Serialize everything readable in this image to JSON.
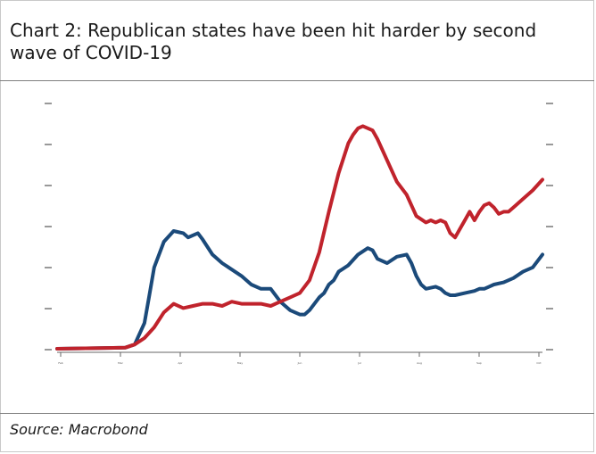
{
  "header": {
    "title": "Chart 2:  Republican states have been hit harder by second wave of COVID-19"
  },
  "footer": {
    "source": "Source: Macrobond"
  },
  "chart_data": {
    "type": "line",
    "title": "Chart 2:  Republican states have been hit harder by second wave of COVID-19",
    "xlabel": "",
    "ylabel": "",
    "x_tick_labels": [
      "Feb",
      "Mar",
      "Apr",
      "May",
      "Jun",
      "Jul",
      "Aug",
      "Sep",
      "Oct"
    ],
    "xlim": [
      0,
      100
    ],
    "ylim": [
      0,
      100
    ],
    "grid": false,
    "legend_position": "on-chart labels",
    "colors": {
      "blue_series": "#1b4a7a",
      "red_series": "#c0232c"
    },
    "series": [
      {
        "color": "#1b4a7a",
        "x": [
          0,
          14,
          16,
          18,
          19,
          20,
          22,
          24,
          26,
          27,
          28,
          29,
          30,
          32,
          34,
          36,
          38,
          40,
          42,
          44,
          46,
          48,
          50,
          51,
          52,
          54,
          55,
          56,
          57,
          58,
          60,
          62,
          64,
          65,
          66,
          68,
          70,
          72,
          73,
          74,
          75,
          76,
          78,
          79,
          80,
          81,
          82,
          84,
          86,
          87,
          88,
          89,
          90,
          92,
          94,
          96,
          98,
          100
        ],
        "y": [
          0,
          0.5,
          2,
          12,
          25,
          38,
          50,
          55,
          54,
          52,
          53,
          54,
          51,
          44,
          40,
          37,
          34,
          30,
          28,
          28,
          22,
          18,
          16,
          16,
          18,
          24,
          26,
          30,
          32,
          36,
          39,
          44,
          47,
          46,
          42,
          40,
          43,
          44,
          40,
          34,
          30,
          28,
          29,
          28,
          26,
          25,
          25,
          26,
          27,
          28,
          28,
          29,
          30,
          31,
          33,
          36,
          38,
          44
        ]
      },
      {
        "color": "#c0232c",
        "x": [
          0,
          14,
          16,
          18,
          20,
          22,
          24,
          26,
          28,
          30,
          32,
          34,
          36,
          38,
          40,
          42,
          44,
          46,
          48,
          50,
          52,
          54,
          56,
          58,
          60,
          61,
          62,
          63,
          64,
          65,
          66,
          68,
          70,
          72,
          74,
          76,
          77,
          78,
          79,
          80,
          81,
          82,
          83,
          84,
          85,
          86,
          87,
          88,
          89,
          90,
          91,
          92,
          93,
          94,
          96,
          98,
          100
        ],
        "y": [
          0,
          0.5,
          2,
          5,
          10,
          17,
          21,
          19,
          20,
          21,
          21,
          20,
          22,
          21,
          21,
          21,
          20,
          22,
          24,
          26,
          32,
          45,
          64,
          82,
          96,
          100,
          103,
          104,
          103,
          102,
          98,
          88,
          78,
          72,
          62,
          59,
          60,
          59,
          60,
          59,
          54,
          52,
          56,
          60,
          64,
          60,
          64,
          67,
          68,
          66,
          63,
          64,
          64,
          66,
          70,
          74,
          79
        ]
      }
    ]
  }
}
